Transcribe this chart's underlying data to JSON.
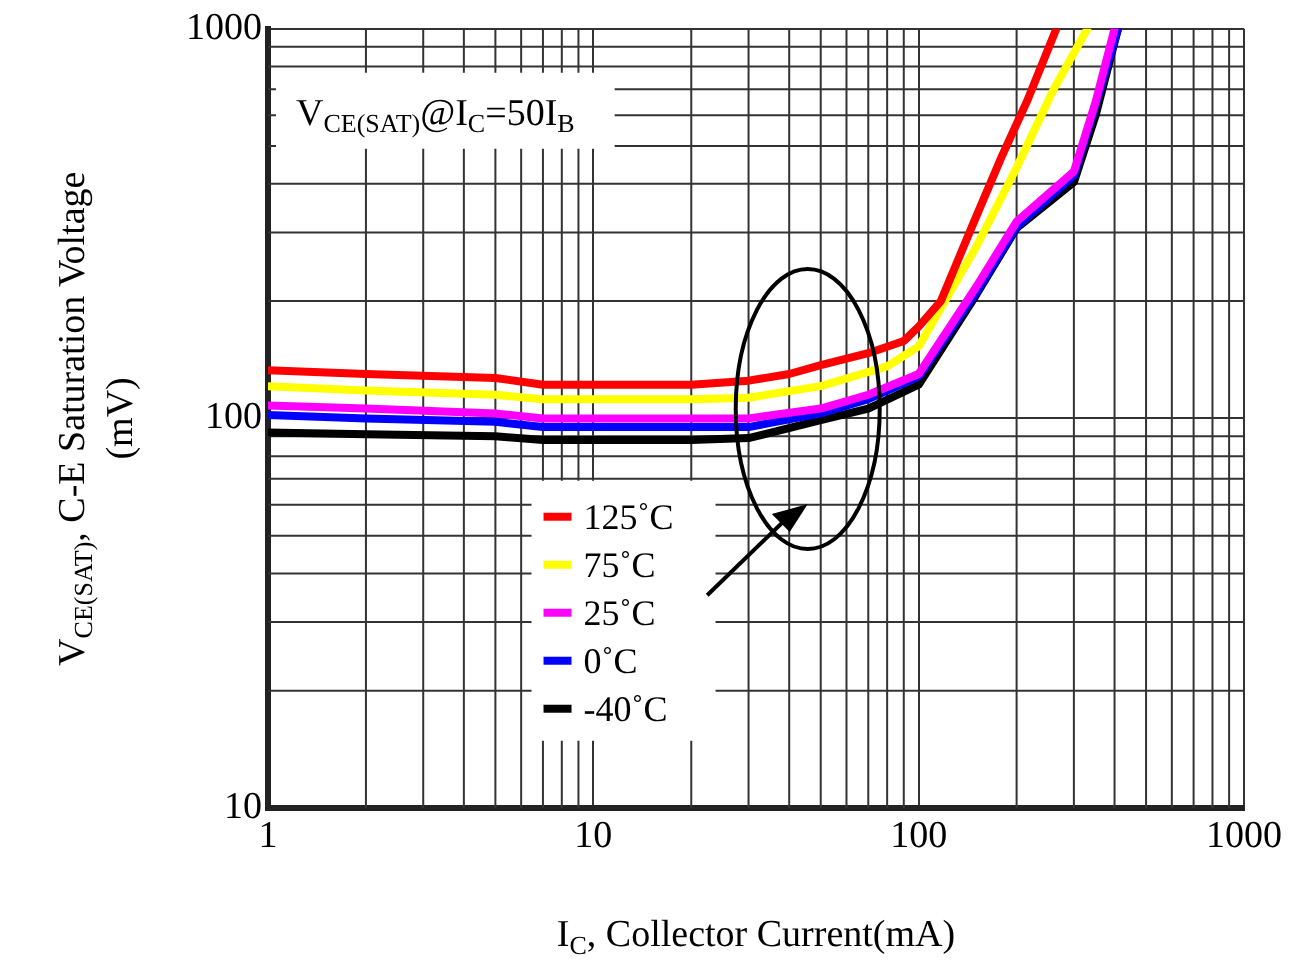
{
  "chart_data": {
    "type": "line",
    "xlabel": "I$_{C}$, Collector Current(mA)",
    "ylabel": "V$_{CE(SAT)}$, C-E Saturation Voltage\n(mV)",
    "annotations": [
      "V$_{CE(SAT)}$@I$_{C}$=50I$_{B}$"
    ],
    "log": "xy",
    "xlim": [
      1,
      1000
    ],
    "ylim": [
      10,
      1000
    ],
    "xticks": [
      1,
      10,
      100,
      1000
    ],
    "yticks": [
      10,
      100,
      1000
    ],
    "grid": true,
    "legend": "bottom",
    "marker": "none",
    "line_style": "solid",
    "series": [
      {
        "name": "125˚C",
        "color": "#ff0000",
        "x": [
          1,
          2,
          5,
          7,
          10,
          20,
          30,
          40,
          50,
          70,
          90,
          100,
          117,
          148,
          180,
          215,
          265
        ],
        "values": [
          133,
          130,
          127,
          122,
          122,
          122,
          125,
          130,
          137,
          147,
          158,
          172,
          200,
          320,
          470,
          650,
          1000
        ]
      },
      {
        "name": "75˚C",
        "color": "#ffff00",
        "x": [
          1,
          2,
          5,
          7,
          10,
          20,
          30,
          50,
          80,
          100,
          150,
          200,
          260,
          330
        ],
        "values": [
          121,
          118,
          115,
          112,
          112,
          112,
          113,
          121,
          136,
          153,
          275,
          440,
          700,
          1000
        ]
      },
      {
        "name": "25˚C",
        "color": "#ff00ff",
        "x": [
          1,
          2,
          5,
          7,
          10,
          20,
          30,
          50,
          70,
          100,
          150,
          200,
          300,
          350,
          400
        ],
        "values": [
          108,
          106,
          103,
          100,
          100,
          100,
          100,
          106,
          115,
          130,
          217,
          320,
          430,
          650,
          1000
        ]
      },
      {
        "name": "0˚C",
        "color": "#0000ff",
        "x": [
          1,
          2,
          5,
          7,
          10,
          20,
          30,
          50,
          70,
          100,
          150,
          200,
          300,
          350,
          410
        ],
        "values": [
          102,
          100,
          98,
          95,
          95,
          95,
          95,
          103,
          112,
          128,
          210,
          310,
          420,
          640,
          1000
        ]
      },
      {
        "name": "-40˚C",
        "color": "#000000",
        "x": [
          1,
          2,
          5,
          7,
          10,
          20,
          30,
          50,
          70,
          100,
          150,
          200,
          300,
          350,
          410
        ],
        "values": [
          92,
          91,
          90,
          88,
          88,
          88,
          89,
          99,
          106,
          122,
          207,
          308,
          404,
          600,
          1000
        ]
      }
    ]
  }
}
